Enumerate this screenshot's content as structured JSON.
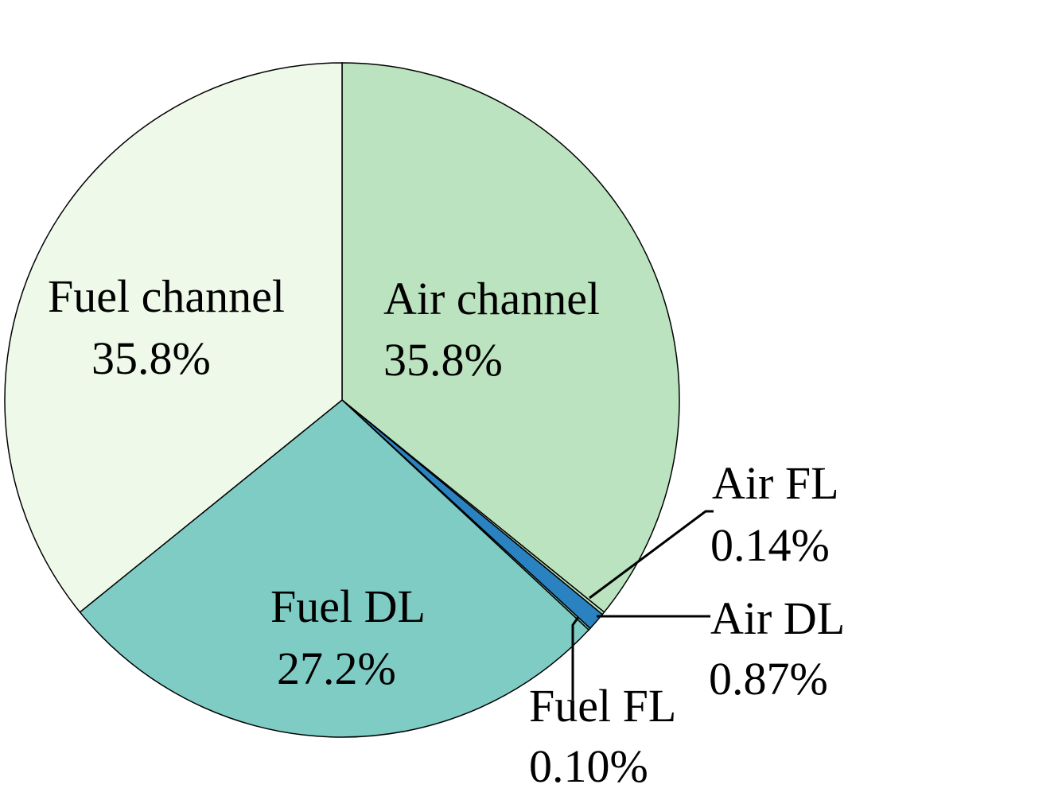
{
  "chart_data": {
    "type": "pie",
    "categories": [
      "Air channel",
      "Air FL",
      "Air DL",
      "Fuel FL",
      "Fuel DL",
      "Fuel channel"
    ],
    "values": [
      35.8,
      0.14,
      0.87,
      0.1,
      27.2,
      35.8
    ],
    "value_labels": [
      "35.8%",
      "0.14%",
      "0.87%",
      "0.10%",
      "27.2%",
      "35.8%"
    ],
    "colors": [
      "#bce3bf",
      "#bce3bf",
      "#2b82c0",
      "#7fccc5",
      "#7fccc5",
      "#eef9e9"
    ]
  }
}
